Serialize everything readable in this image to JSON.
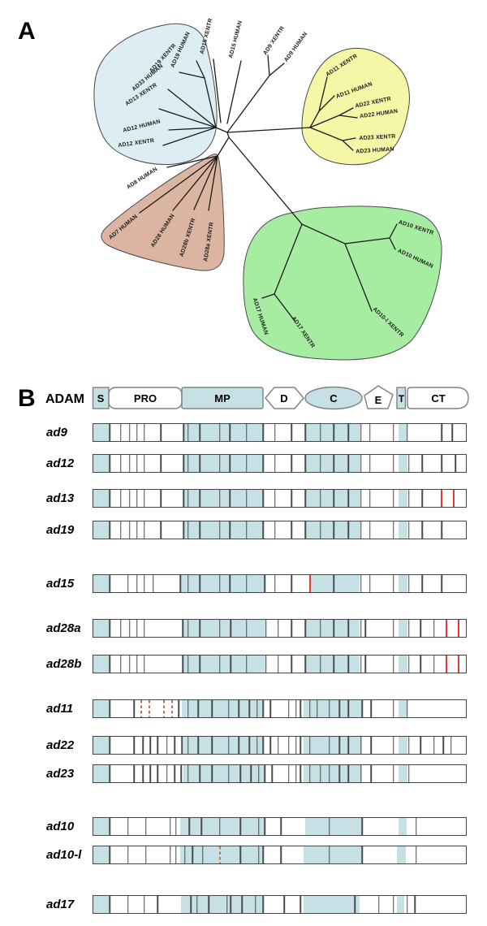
{
  "panelA": {
    "label": "A",
    "clade_colors": {
      "blue": "#dceef4",
      "yellow": "#f5f7a6",
      "brown": "#dbb5a1",
      "green": "#a6eca1"
    },
    "taxa": [
      "AD19 HUMAN",
      "AD19 XENTR",
      "AD33 HUMAN",
      "AD13 XENTR",
      "AD12 HUMAN",
      "AD12 XENTR",
      "AD15 XENTR",
      "AD15 HUMAN",
      "AD9 XENTR",
      "AD9 HUMAN",
      "AD11 XENTR",
      "AD11 HUMAN",
      "AD22 XENTR",
      "AD22 HUMAN",
      "AD23 XENTR",
      "AD23 HUMAN",
      "AD8 HUMAN",
      "AD7 HUMAN",
      "AD28 HUMAN",
      "AD28b XENTR",
      "AD28a XENTR",
      "AD10 XENTR",
      "AD10 HUMAN",
      "AD10-l XENTR",
      "AD17 HUMAN",
      "AD17 XENTR"
    ]
  },
  "panelB": {
    "label": "B",
    "header": {
      "title": "ADAM",
      "domains": [
        {
          "label": "S"
        },
        {
          "label": "PRO"
        },
        {
          "label": "MP"
        },
        {
          "label": "D"
        },
        {
          "label": "C"
        },
        {
          "label": "E"
        },
        {
          "label": "T"
        },
        {
          "label": "CT"
        }
      ]
    },
    "rows": [
      {
        "name": "ad9",
        "lines": [
          4.4,
          7.3,
          9.7,
          11.7,
          13.7,
          18.1,
          24.2,
          25.4,
          28.6,
          33.9,
          36.7,
          41.1,
          45.6,
          48.8,
          53.2,
          56.9,
          60.9,
          64.5,
          68.5,
          71.8,
          74.2,
          80.6,
          84.3,
          93.5,
          96.4
        ],
        "blues": [
          [
            0,
            4.4
          ],
          [
            24.2,
            45.6
          ],
          [
            56.9,
            71.6
          ],
          [
            81.9,
            84.3
          ]
        ],
        "reds": [],
        "dashes": []
      },
      {
        "name": "ad12",
        "lines": [
          4.4,
          7.3,
          9.7,
          11.7,
          13.7,
          18.1,
          24.2,
          25.4,
          28.6,
          33.9,
          36.7,
          41.1,
          45.6,
          48.8,
          53.2,
          56.9,
          60.9,
          64.5,
          68.5,
          71.8,
          74.2,
          80.6,
          84.7,
          88.3,
          93.5,
          97.2
        ],
        "blues": [
          [
            0,
            4.4
          ],
          [
            24.2,
            45.6
          ],
          [
            56.9,
            71.6
          ],
          [
            81.9,
            84.3
          ]
        ],
        "reds": [],
        "dashes": []
      },
      {
        "name": "ad13",
        "lines": [
          4.4,
          7.3,
          9.7,
          11.7,
          13.7,
          18.1,
          24.2,
          25.4,
          28.6,
          33.9,
          36.7,
          41.1,
          45.6,
          48.8,
          53.2,
          56.9,
          60.9,
          64.5,
          68.5,
          71.8,
          74.2,
          80.6,
          84.7,
          88.3
        ],
        "blues": [
          [
            0,
            4.4
          ],
          [
            24.2,
            45.6
          ],
          [
            56.9,
            71.6
          ],
          [
            81.9,
            84.3
          ]
        ],
        "reds": [
          93.4,
          96.8
        ],
        "dashes": []
      },
      {
        "name": "ad19",
        "lines": [
          4.4,
          7.3,
          9.7,
          11.7,
          13.7,
          18.1,
          24.2,
          25.4,
          28.6,
          33.9,
          36.7,
          41.1,
          45.6,
          48.8,
          53.2,
          56.9,
          60.9,
          64.5,
          68.5,
          71.8,
          74.2,
          80.6,
          84.7,
          88.3,
          93.5
        ],
        "blues": [
          [
            0,
            4.4
          ],
          [
            24.2,
            45.6
          ],
          [
            56.9,
            71.6
          ],
          [
            81.9,
            84.3
          ]
        ],
        "reds": [],
        "dashes": []
      },
      {
        "name": "ad15",
        "lines": [
          4.4,
          9.3,
          11.7,
          13.7,
          16.1,
          23.4,
          25.4,
          28.6,
          33.9,
          36.7,
          41.1,
          46.0,
          48.8,
          53.2,
          64.5,
          71.8,
          74.2,
          80.6,
          84.7,
          88.3,
          93.5
        ],
        "blues": [
          [
            0,
            4.4
          ],
          [
            23.4,
            46.0
          ],
          [
            58.1,
            71.4
          ],
          [
            81.9,
            84.3
          ]
        ],
        "reds": [
          58.1
        ],
        "dashes": []
      },
      {
        "name": "ad28a",
        "lines": [
          4.4,
          7.3,
          9.7,
          11.7,
          13.7,
          24.0,
          25.4,
          28.6,
          33.9,
          36.9,
          41.1,
          46.4,
          49.6,
          53.2,
          56.9,
          60.9,
          64.5,
          68.5,
          71.8,
          73.0,
          80.6,
          84.7,
          87.9,
          91.5
        ],
        "blues": [
          [
            0,
            4.4
          ],
          [
            24.0,
            46.4
          ],
          [
            56.9,
            71.4
          ],
          [
            81.9,
            84.3
          ]
        ],
        "reds": [
          94.8,
          98.0
        ],
        "dashes": []
      },
      {
        "name": "ad28b",
        "lines": [
          4.4,
          7.3,
          9.7,
          11.7,
          13.7,
          24.0,
          25.4,
          28.6,
          33.9,
          36.9,
          41.1,
          46.4,
          49.6,
          53.2,
          56.9,
          60.9,
          64.5,
          68.5,
          71.8,
          73.0,
          80.6,
          84.7,
          87.9,
          91.5
        ],
        "blues": [
          [
            0,
            4.4
          ],
          [
            24.0,
            46.4
          ],
          [
            56.9,
            71.4
          ],
          [
            81.9,
            84.3
          ]
        ],
        "reds": [
          94.8,
          98.0
        ],
        "dashes": []
      },
      {
        "name": "ad11",
        "lines": [
          4.4,
          10.9,
          22.9,
          25.4,
          28.2,
          31.9,
          36.3,
          39.1,
          41.9,
          44.0,
          45.6,
          47.6,
          52.4,
          54.4,
          55.6,
          58.1,
          60.1,
          63.3,
          66.1,
          68.5,
          72.2,
          74.6,
          80.6,
          84.3
        ],
        "blues": [
          [
            0,
            4.4
          ],
          [
            23.7,
            45.6
          ],
          [
            56.5,
            72.2
          ],
          [
            81.9,
            84.3
          ]
        ],
        "reds": [],
        "dashes": [
          12.8,
          15.0,
          19.0,
          21.1
        ]
      },
      {
        "name": "ad22",
        "lines": [
          4.4,
          10.9,
          13.3,
          15.3,
          17.3,
          19.8,
          21.8,
          23.8,
          25.4,
          28.2,
          31.9,
          36.3,
          39.1,
          41.9,
          44.0,
          45.6,
          47.6,
          49.6,
          52.4,
          54.4,
          55.6,
          58.1,
          63.3,
          66.1,
          68.5,
          71.8,
          74.6,
          80.6,
          84.7,
          87.9,
          91.5,
          94.0,
          96.0
        ],
        "blues": [
          [
            0,
            4.4
          ],
          [
            24.2,
            45.6
          ],
          [
            56.5,
            72.2
          ],
          [
            81.9,
            84.3
          ]
        ],
        "reds": [],
        "dashes": []
      },
      {
        "name": "ad23",
        "lines": [
          4.4,
          10.9,
          13.3,
          15.3,
          17.3,
          19.8,
          21.8,
          23.6,
          25.4,
          28.6,
          31.9,
          36.3,
          39.5,
          42.3,
          44.4,
          46.0,
          48.0,
          52.4,
          54.4,
          55.6,
          58.1,
          60.9,
          63.3,
          66.1,
          68.5,
          71.8,
          74.6,
          80.6,
          84.7
        ],
        "blues": [
          [
            0,
            4.4
          ],
          [
            24.2,
            46.0
          ],
          [
            56.5,
            72.2
          ],
          [
            81.9,
            84.3
          ]
        ],
        "reds": [],
        "dashes": []
      },
      {
        "name": "ad10",
        "lines": [
          4.4,
          9.3,
          14.1,
          20.6,
          22.2,
          25.8,
          29.0,
          33.9,
          39.5,
          44.4,
          46.0,
          50.4,
          63.3,
          72.2,
          86.7
        ],
        "blues": [
          [
            0,
            4.4
          ],
          [
            23.4,
            46.0
          ],
          [
            56.9,
            72.2
          ],
          [
            81.9,
            84.1
          ]
        ],
        "reds": [],
        "dashes": []
      },
      {
        "name": "ad10-l",
        "lines": [
          4.4,
          9.3,
          14.1,
          20.6,
          22.2,
          24.6,
          26.6,
          29.4,
          39.5,
          44.4,
          45.6,
          50.4,
          63.3,
          72.2,
          86.7
        ],
        "blues": [
          [
            0,
            4.4
          ],
          [
            23.4,
            45.6
          ],
          [
            56.5,
            72.2
          ],
          [
            81.5,
            83.9
          ]
        ],
        "reds": [],
        "dashes": [
          33.9
        ]
      },
      {
        "name": "ad17",
        "lines": [
          4.4,
          9.3,
          13.7,
          17.3,
          26.2,
          27.8,
          31.0,
          35.9,
          36.9,
          39.9,
          43.5,
          45.6,
          51.2,
          55.6,
          70.2,
          76.6,
          80.6,
          84.3,
          86.3
        ],
        "blues": [
          [
            0,
            4.4
          ],
          [
            23.6,
            45.6
          ],
          [
            56.5,
            71.4
          ],
          [
            81.5,
            83.5
          ]
        ],
        "reds": [],
        "dashes": []
      }
    ]
  },
  "colors": {
    "exon_blue": "#c5e1e5",
    "line": "#4a4a4a",
    "red": "#ee362e",
    "dash": "#c4714d"
  }
}
